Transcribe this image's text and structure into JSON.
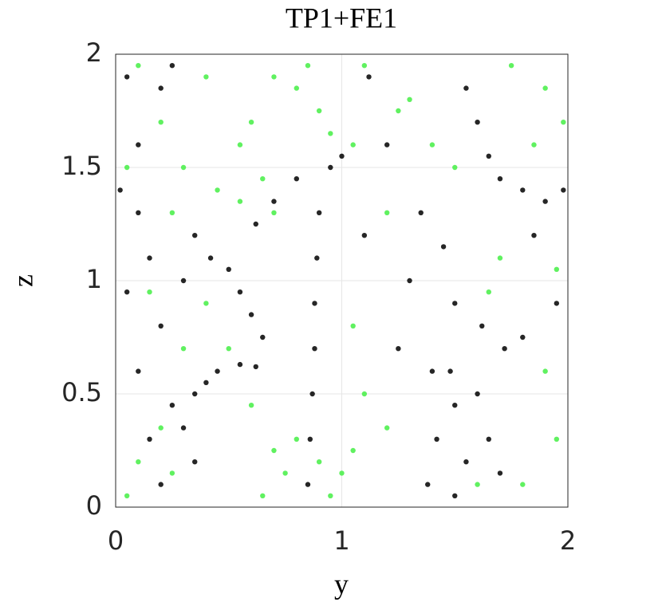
{
  "chart_data": {
    "type": "scatter",
    "title": "TP1+FE1",
    "x_label": "y",
    "y_label": "z",
    "xlim": [
      0,
      2
    ],
    "ylim": [
      0,
      2
    ],
    "xticks": [
      0,
      1,
      2
    ],
    "yticks": [
      0,
      0.5,
      1,
      1.5,
      2
    ],
    "grid": true,
    "series": [
      {
        "color": "#44ee44",
        "x": [
          0.1,
          0.2,
          0.05,
          0.3,
          0.45,
          0.55,
          0.65,
          0.7,
          0.6,
          0.7,
          0.8,
          0.9,
          0.95,
          1.05,
          0.85,
          1.1,
          1.25,
          1.3,
          1.4,
          1.5,
          1.75,
          1.9,
          1.98,
          1.85,
          0.25,
          0.15,
          0.4,
          0.5,
          0.3,
          0.1,
          0.2,
          0.25,
          0.05,
          0.7,
          0.75,
          0.8,
          0.9,
          1.0,
          1.05,
          0.95,
          0.65,
          0.6,
          1.1,
          1.05,
          1.2,
          1.65,
          1.9,
          1.95,
          1.8,
          1.6,
          1.95,
          1.7,
          0.55,
          0.4,
          1.2
        ],
        "y": [
          1.95,
          1.7,
          1.5,
          1.5,
          1.4,
          1.35,
          1.45,
          1.3,
          1.7,
          1.9,
          1.85,
          1.75,
          1.65,
          1.6,
          1.95,
          1.95,
          1.75,
          1.8,
          1.6,
          1.5,
          1.95,
          1.85,
          1.7,
          1.6,
          1.3,
          0.95,
          0.9,
          0.7,
          0.7,
          0.2,
          0.35,
          0.15,
          0.05,
          0.25,
          0.15,
          0.3,
          0.2,
          0.15,
          0.25,
          0.05,
          0.05,
          0.45,
          0.5,
          0.8,
          0.35,
          0.95,
          0.6,
          0.3,
          0.1,
          0.1,
          1.05,
          1.1,
          1.6,
          1.9,
          1.3
        ]
      },
      {
        "color": "#000000",
        "x": [
          0.05,
          0.1,
          0.2,
          0.25,
          0.02,
          0.1,
          0.15,
          0.05,
          0.2,
          0.3,
          0.35,
          0.1,
          0.25,
          0.3,
          0.35,
          0.4,
          0.45,
          0.55,
          0.62,
          0.65,
          0.6,
          0.55,
          0.5,
          0.42,
          0.35,
          0.2,
          0.15,
          0.85,
          0.86,
          0.87,
          0.88,
          0.88,
          0.89,
          0.9,
          0.95,
          1.0,
          0.7,
          0.8,
          0.62,
          1.12,
          1.2,
          1.1,
          1.3,
          1.25,
          1.4,
          1.42,
          1.38,
          1.5,
          1.55,
          1.5,
          1.48,
          1.5,
          1.6,
          1.65,
          1.7,
          1.72,
          1.62,
          1.55,
          1.6,
          1.65,
          1.7,
          1.8,
          1.9,
          1.98,
          1.85,
          1.95,
          1.8,
          1.35,
          1.45
        ],
        "y": [
          1.9,
          1.6,
          1.85,
          1.95,
          1.4,
          1.3,
          1.1,
          0.95,
          0.8,
          1.0,
          1.2,
          0.6,
          0.45,
          0.35,
          0.5,
          0.55,
          0.6,
          0.63,
          0.62,
          0.75,
          0.85,
          0.95,
          1.05,
          1.1,
          0.2,
          0.1,
          0.3,
          0.1,
          0.3,
          0.5,
          0.7,
          0.9,
          1.1,
          1.3,
          1.5,
          1.55,
          1.35,
          1.45,
          1.25,
          1.9,
          1.6,
          1.2,
          1.0,
          0.7,
          0.6,
          0.3,
          0.1,
          0.05,
          0.2,
          0.45,
          0.6,
          0.9,
          0.5,
          0.3,
          0.15,
          0.7,
          0.8,
          1.85,
          1.7,
          1.55,
          1.45,
          1.4,
          1.35,
          1.4,
          1.2,
          0.9,
          0.75,
          1.3,
          1.15
        ]
      }
    ]
  }
}
